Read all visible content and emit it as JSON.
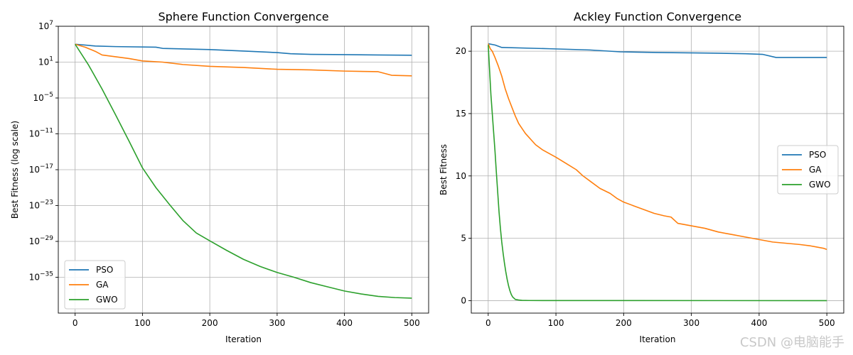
{
  "chart_data": [
    {
      "type": "line",
      "title": "Sphere Function Convergence",
      "xlabel": "Iteration",
      "ylabel": "Best Fitness (log scale)",
      "yscale": "log",
      "xlim": [
        -25,
        525
      ],
      "ylim_log10": [
        -41,
        7
      ],
      "grid": true,
      "legend_position": "lower-left",
      "xticks": [
        0,
        100,
        200,
        300,
        400,
        500
      ],
      "yticks_exp": [
        7,
        1,
        -5,
        -11,
        -17,
        -23,
        -29,
        -35
      ],
      "series": [
        {
          "name": "PSO",
          "color": "#1f77b4",
          "x": [
            0,
            30,
            60,
            120,
            130,
            200,
            260,
            300,
            320,
            350,
            400,
            450,
            500
          ],
          "log10_y": [
            4.0,
            3.7,
            3.6,
            3.5,
            3.3,
            3.1,
            2.8,
            2.6,
            2.4,
            2.3,
            2.25,
            2.2,
            2.15
          ]
        },
        {
          "name": "GA",
          "color": "#ff7f0e",
          "x": [
            0,
            15,
            30,
            40,
            60,
            80,
            100,
            130,
            160,
            200,
            250,
            300,
            350,
            400,
            450,
            470,
            500
          ],
          "log10_y": [
            4.0,
            3.5,
            2.8,
            2.2,
            1.9,
            1.6,
            1.2,
            1.0,
            0.6,
            0.3,
            0.1,
            -0.2,
            -0.3,
            -0.5,
            -0.6,
            -1.2,
            -1.3
          ]
        },
        {
          "name": "GWO",
          "color": "#2ca02c",
          "x": [
            0,
            20,
            40,
            60,
            80,
            100,
            120,
            140,
            160,
            180,
            200,
            225,
            250,
            275,
            300,
            325,
            350,
            375,
            400,
            425,
            450,
            475,
            500
          ],
          "log10_y": [
            4.0,
            0.5,
            -3.5,
            -7.8,
            -12.2,
            -16.7,
            -20.0,
            -22.8,
            -25.5,
            -27.6,
            -28.9,
            -30.5,
            -32.0,
            -33.2,
            -34.2,
            -35.0,
            -35.9,
            -36.6,
            -37.3,
            -37.8,
            -38.2,
            -38.4,
            -38.5
          ]
        }
      ]
    },
    {
      "type": "line",
      "title": "Ackley Function Convergence",
      "xlabel": "Iteration",
      "ylabel": "Best Fitness",
      "xlim": [
        -25,
        525
      ],
      "ylim": [
        -1.0,
        22.0
      ],
      "grid": true,
      "legend_position": "center-right",
      "xticks": [
        0,
        100,
        200,
        300,
        400,
        500
      ],
      "yticks": [
        0,
        5,
        10,
        15,
        20
      ],
      "series": [
        {
          "name": "PSO",
          "color": "#1f77b4",
          "x": [
            0,
            10,
            20,
            90,
            150,
            195,
            250,
            330,
            380,
            405,
            425,
            500
          ],
          "y": [
            20.6,
            20.5,
            20.3,
            20.2,
            20.1,
            19.95,
            19.9,
            19.85,
            19.8,
            19.75,
            19.5,
            19.5
          ]
        },
        {
          "name": "GA",
          "color": "#ff7f0e",
          "x": [
            0,
            3,
            6,
            10,
            15,
            20,
            25,
            30,
            35,
            40,
            45,
            50,
            55,
            60,
            65,
            70,
            80,
            90,
            100,
            115,
            130,
            140,
            150,
            165,
            180,
            190,
            200,
            215,
            230,
            245,
            260,
            270,
            280,
            300,
            320,
            340,
            360,
            380,
            400,
            420,
            440,
            460,
            475,
            495,
            500
          ],
          "y": [
            20.6,
            20.2,
            20.0,
            19.5,
            18.8,
            18.0,
            17.0,
            16.2,
            15.5,
            14.8,
            14.2,
            13.8,
            13.4,
            13.1,
            12.8,
            12.5,
            12.1,
            11.8,
            11.5,
            11.0,
            10.5,
            10.0,
            9.6,
            9.0,
            8.6,
            8.2,
            7.9,
            7.6,
            7.3,
            7.0,
            6.8,
            6.7,
            6.2,
            6.0,
            5.8,
            5.5,
            5.3,
            5.1,
            4.9,
            4.7,
            4.6,
            4.5,
            4.4,
            4.2,
            4.1
          ]
        },
        {
          "name": "GWO",
          "color": "#2ca02c",
          "x": [
            0,
            2,
            4,
            6,
            8,
            10,
            12,
            14,
            16,
            18,
            20,
            22,
            24,
            26,
            28,
            30,
            32,
            34,
            36,
            38,
            40,
            45,
            50,
            60,
            500
          ],
          "y": [
            20.5,
            18.5,
            16.5,
            15.0,
            13.5,
            12.0,
            10.3,
            8.7,
            7.1,
            5.8,
            4.7,
            3.8,
            3.0,
            2.3,
            1.7,
            1.2,
            0.8,
            0.5,
            0.3,
            0.2,
            0.1,
            0.05,
            0.02,
            0.01,
            0.0
          ]
        }
      ]
    }
  ],
  "watermark": "CSDN @电脑能手"
}
